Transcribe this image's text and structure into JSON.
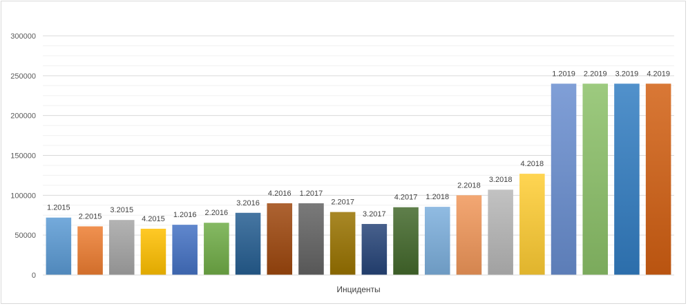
{
  "chart_data": {
    "type": "bar",
    "title": "",
    "xlabel": "Инциденты",
    "ylabel": "",
    "ylim": [
      0,
      300000
    ],
    "y_ticks": [
      0,
      50000,
      100000,
      150000,
      200000,
      250000,
      300000
    ],
    "grid": true,
    "legend": "none",
    "categories": [
      "1.2015",
      "2.2015",
      "3.2015",
      "4.2015",
      "1.2016",
      "2.2016",
      "3.2016",
      "4.2016",
      "1.2017",
      "2.2017",
      "3.2017",
      "4.2017",
      "1.2018",
      "2.2018",
      "3.2018",
      "4.2018",
      "1.2019",
      "2.2019",
      "3.2019",
      "4.2019"
    ],
    "values": [
      72000,
      61000,
      69000,
      58000,
      63000,
      65500,
      78000,
      90000,
      90000,
      79000,
      64000,
      85000,
      85500,
      100000,
      107000,
      127000,
      240000,
      240000,
      240000,
      240000
    ],
    "colors": [
      "#5b9bd5",
      "#ed7d31",
      "#a5a5a5",
      "#ffc000",
      "#4472c4",
      "#70ad47",
      "#255e91",
      "#9e480e",
      "#636363",
      "#997300",
      "#264478",
      "#43682b",
      "#7cafdd",
      "#f1975a",
      "#b7b7b7",
      "#ffcd33",
      "#698ed0",
      "#8cc168",
      "#327dc2",
      "#d26012"
    ]
  }
}
